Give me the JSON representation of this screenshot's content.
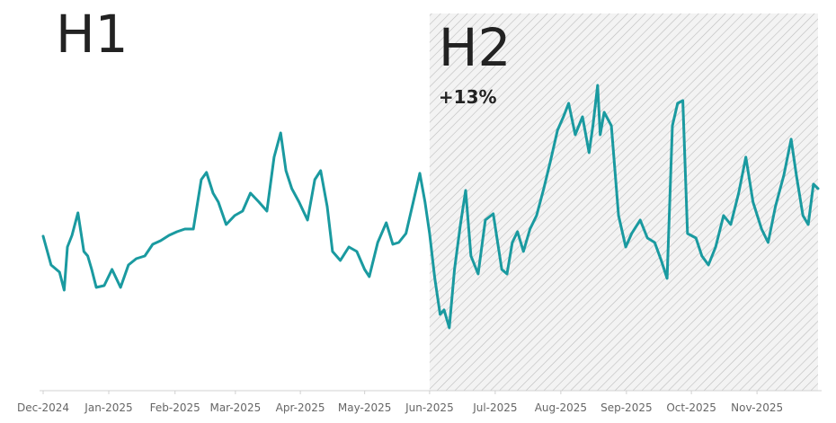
{
  "chart_data": {
    "type": "line",
    "color": "#1a9aa0",
    "x": [
      0,
      0.12,
      0.25,
      0.32,
      0.37,
      0.44,
      0.53,
      0.62,
      0.68,
      0.74,
      0.81,
      0.93,
      1.05,
      1.18,
      1.3,
      1.42,
      1.55,
      1.67,
      1.79,
      1.92,
      2.04,
      2.16,
      2.29,
      2.41,
      2.49,
      2.59,
      2.67,
      2.79,
      2.92,
      3.04,
      3.16,
      3.29,
      3.41,
      3.52,
      3.62,
      3.7,
      3.79,
      3.9,
      4.03,
      4.14,
      4.23,
      4.33,
      4.41,
      4.53,
      4.66,
      4.78,
      4.9,
      4.97,
      5.1,
      5.23,
      5.33,
      5.42,
      5.53,
      5.64,
      5.74,
      5.82,
      5.89,
      5.97,
      6.05,
      6.11,
      6.19,
      6.27,
      6.36,
      6.44,
      6.52,
      6.63,
      6.74,
      6.86,
      6.99,
      7.07,
      7.15,
      7.23,
      7.32,
      7.42,
      7.52,
      7.63,
      7.73,
      7.84,
      7.93,
      8.01,
      8.11,
      8.22,
      8.32,
      8.38,
      8.45,
      8.49,
      8.55,
      8.66,
      8.77,
      8.88,
      8.97,
      9.1,
      9.21,
      9.32,
      9.42,
      9.51,
      9.59,
      9.67,
      9.75,
      9.82,
      9.95,
      10.04,
      10.14,
      10.25,
      10.37,
      10.48,
      10.6,
      10.71,
      10.82,
      10.95,
      11.05,
      11.16,
      11.29,
      11.4,
      11.48,
      11.58,
      11.66,
      11.74,
      11.81
    ],
    "values": [
      167,
      135,
      127,
      107,
      155,
      168,
      193,
      150,
      145,
      130,
      110,
      112,
      130,
      110,
      135,
      142,
      145,
      158,
      162,
      168,
      172,
      175,
      175,
      230,
      238,
      215,
      205,
      180,
      190,
      195,
      215,
      205,
      195,
      255,
      282,
      240,
      220,
      205,
      185,
      230,
      240,
      200,
      150,
      140,
      155,
      150,
      130,
      122,
      160,
      182,
      158,
      160,
      170,
      205,
      237,
      205,
      170,
      120,
      80,
      85,
      65,
      130,
      180,
      218,
      145,
      125,
      185,
      192,
      130,
      125,
      160,
      172,
      150,
      175,
      190,
      220,
      250,
      285,
      300,
      315,
      280,
      300,
      260,
      290,
      335,
      280,
      305,
      290,
      190,
      155,
      170,
      185,
      165,
      160,
      140,
      120,
      290,
      315,
      318,
      170,
      165,
      145,
      135,
      155,
      190,
      180,
      215,
      255,
      205,
      175,
      160,
      200,
      235,
      275,
      235,
      190,
      180,
      225,
      220
    ],
    "xlim": [
      0,
      11.81
    ],
    "ylim": [
      0,
      430
    ],
    "xticks": [
      {
        "value": 0,
        "label": "Dec-2024"
      },
      {
        "value": 1.0,
        "label": "Jan-2025"
      },
      {
        "value": 2.01,
        "label": "Feb-2025"
      },
      {
        "value": 2.93,
        "label": "Mar-2025"
      },
      {
        "value": 3.92,
        "label": "Apr-2025"
      },
      {
        "value": 4.9,
        "label": "May-2025"
      },
      {
        "value": 5.89,
        "label": "Jun-2025"
      },
      {
        "value": 6.89,
        "label": "Jul-2025"
      },
      {
        "value": 7.89,
        "label": "Aug-2025"
      },
      {
        "value": 8.89,
        "label": "Sep-2025"
      },
      {
        "value": 9.88,
        "label": "Oct-2025"
      },
      {
        "value": 10.88,
        "label": "Nov-2025"
      }
    ],
    "regions": [
      {
        "label": "H1"
      },
      {
        "label": "H2",
        "start": 5.89,
        "end": 11.81,
        "note": "+13%"
      }
    ]
  }
}
